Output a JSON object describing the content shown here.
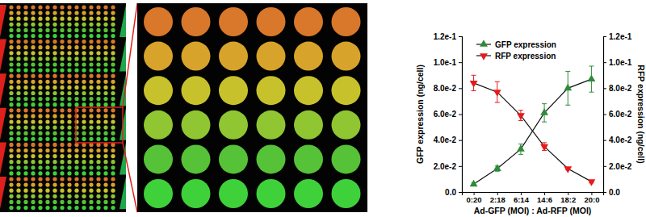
{
  "chart_data": {
    "type": "line",
    "x_label": "Ad-GFP (MOI) : Ad-RFP (MOI)",
    "y_label": "GFP expression (ng/cell)",
    "y2_label": "RFP expression (ng/cell)",
    "categories": [
      "0:20",
      "2:18",
      "6:14",
      "14:6",
      "18:2",
      "20:0"
    ],
    "series": [
      {
        "name": "GFP expression",
        "color": "#2e8b37",
        "marker": "triangle-up",
        "values": [
          0.006,
          0.018,
          0.033,
          0.061,
          0.08,
          0.087
        ],
        "errors": [
          0.001,
          0.002,
          0.004,
          0.007,
          0.013,
          0.01
        ]
      },
      {
        "name": "RFP expression",
        "color": "#e41a1c",
        "marker": "triangle-down",
        "axis": "y2",
        "values": [
          0.084,
          0.077,
          0.059,
          0.035,
          0.018,
          0.008
        ],
        "errors": [
          0.006,
          0.008,
          0.004,
          0.003,
          0.001,
          0.001
        ]
      }
    ],
    "ylim": [
      0,
      0.12
    ],
    "yticks": [
      {
        "value": 0,
        "label": "0.0"
      },
      {
        "value": 0.02,
        "label": "2.0e-2"
      },
      {
        "value": 0.04,
        "label": "4.0e-2"
      },
      {
        "value": 0.06,
        "label": "6.0e-2"
      },
      {
        "value": 0.08,
        "label": "8.0e-2"
      },
      {
        "value": 0.1,
        "label": "1.0e-1"
      },
      {
        "value": 0.12,
        "label": "1.2e-1"
      }
    ],
    "y2lim": [
      0,
      0.12
    ],
    "y2ticks": [
      {
        "value": 0,
        "label": "0.0"
      },
      {
        "value": 0.02,
        "label": "2.0e-2"
      },
      {
        "value": 0.04,
        "label": "4.0e-2"
      },
      {
        "value": 0.06,
        "label": "6.0e-2"
      },
      {
        "value": 0.08,
        "label": "8.0e-2"
      },
      {
        "value": 0.1,
        "label": "1.0e-1"
      },
      {
        "value": 0.12,
        "label": "1.2e-1"
      }
    ],
    "grid": false,
    "legend": "upper left"
  }
}
